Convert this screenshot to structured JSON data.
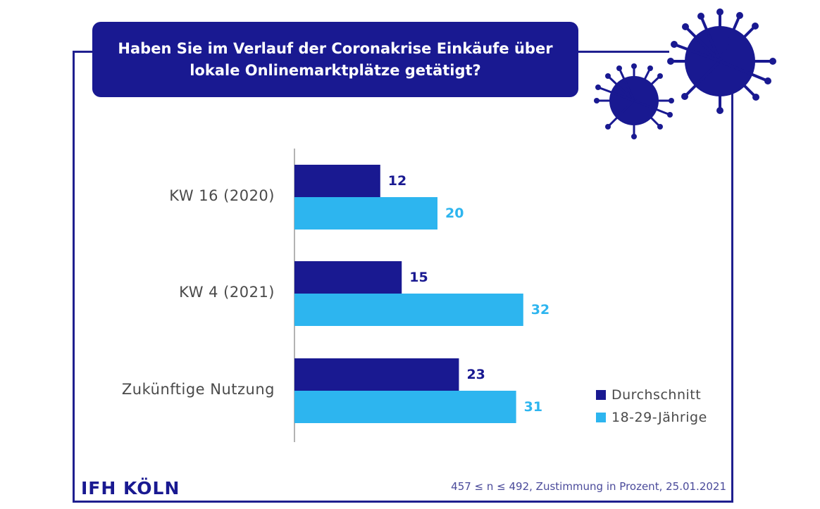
{
  "title": "Haben Sie im Verlauf der Coronakrise Einkäufe über lokale Onlinemarktplätze getätigt?",
  "brand": "IFH KÖLN",
  "note": "457 ≤ n ≤ 492, Zustimmung in Prozent, 25.01.2021",
  "colors": {
    "dark": "#191991",
    "light": "#2db5ef",
    "axis": "#9a9a9a"
  },
  "chart_data": {
    "type": "bar",
    "orientation": "horizontal",
    "title": "Haben Sie im Verlauf der Coronakrise Einkäufe über lokale Onlinemarktplätze getätigt?",
    "categories": [
      "KW 16 (2020)",
      "KW 4 (2021)",
      "Zukünftige Nutzung"
    ],
    "series": [
      {
        "name": "Durchschnitt",
        "values": [
          12,
          15,
          23
        ],
        "color": "#191991"
      },
      {
        "name": "18-29-Jährige",
        "values": [
          20,
          32,
          31
        ],
        "color": "#2db5ef"
      }
    ],
    "xlim": [
      0,
      32
    ],
    "legend_position": "bottom-right",
    "unit": "Prozent"
  }
}
